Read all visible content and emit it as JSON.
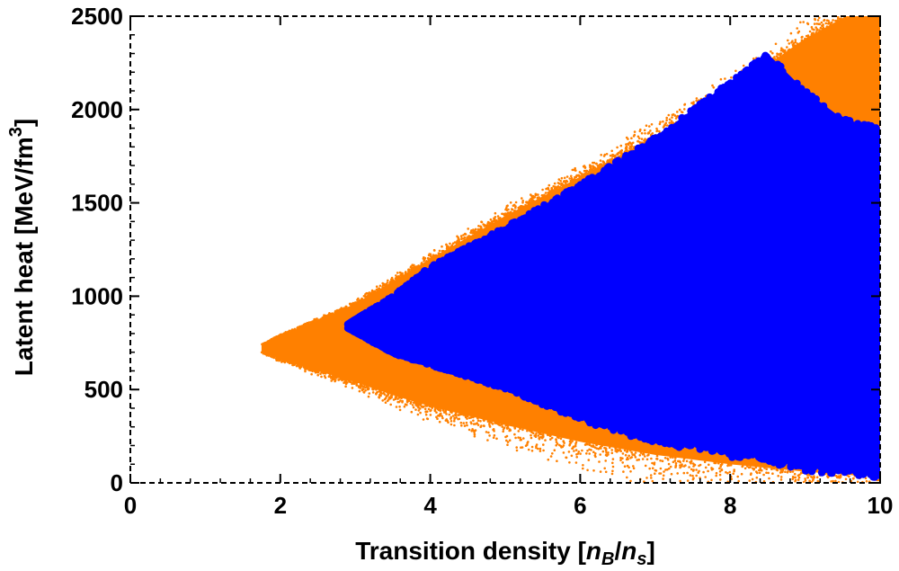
{
  "chart_data": {
    "type": "scatter",
    "xlim": [
      0,
      10
    ],
    "ylim": [
      0,
      2500
    ],
    "xticks": [
      0,
      2,
      4,
      6,
      8,
      10
    ],
    "yticks": [
      0,
      500,
      1000,
      1500,
      2000,
      2500
    ],
    "xlabel": {
      "prefix": "Transition density [",
      "n1": "n",
      "n1_sub": "B",
      "slash": "/",
      "n2": "n",
      "n2_sub": "s",
      "suffix": "]"
    },
    "ylabel": {
      "text": "Latent heat [MeV/fm",
      "sup": "3",
      "suffix": "]"
    },
    "grid": false,
    "legend": "none",
    "series": [
      {
        "color": "#ff8000",
        "marker": "small-dot",
        "region": {
          "x": [
            1.75,
            10
          ],
          "upper_y": [
            [
              1.75,
              740
            ],
            [
              2.0,
              790
            ],
            [
              2.5,
              870
            ],
            [
              3.0,
              960
            ],
            [
              3.5,
              1080
            ],
            [
              4.0,
              1200
            ],
            [
              5.0,
              1430
            ],
            [
              6.0,
              1640
            ],
            [
              7.0,
              1860
            ],
            [
              8.0,
              2100
            ],
            [
              9.0,
              2380
            ],
            [
              10.0,
              2600
            ]
          ],
          "lower_y": [
            [
              1.75,
              700
            ],
            [
              2.0,
              660
            ],
            [
              2.5,
              600
            ],
            [
              3.0,
              540
            ],
            [
              3.5,
              470
            ],
            [
              4.0,
              410
            ],
            [
              5.0,
              310
            ],
            [
              6.0,
              220
            ],
            [
              7.0,
              150
            ],
            [
              8.0,
              100
            ],
            [
              9.0,
              60
            ],
            [
              10.0,
              30
            ]
          ]
        }
      },
      {
        "color": "#0000ff",
        "marker": "large-dot",
        "region": {
          "x": [
            2.9,
            10
          ],
          "upper_y": [
            [
              2.9,
              850
            ],
            [
              3.5,
              1000
            ],
            [
              4.0,
              1160
            ],
            [
              5.0,
              1370
            ],
            [
              6.0,
              1600
            ],
            [
              7.0,
              1850
            ],
            [
              8.0,
              2150
            ],
            [
              8.5,
              2300
            ],
            [
              9.0,
              2100
            ],
            [
              9.5,
              1950
            ],
            [
              10.0,
              1900
            ]
          ],
          "lower_y": [
            [
              2.9,
              830
            ],
            [
              3.5,
              700
            ],
            [
              4.0,
              640
            ],
            [
              5.0,
              520
            ],
            [
              6.0,
              360
            ],
            [
              7.0,
              250
            ],
            [
              8.0,
              180
            ],
            [
              9.0,
              110
            ],
            [
              10.0,
              60
            ]
          ]
        }
      }
    ]
  }
}
